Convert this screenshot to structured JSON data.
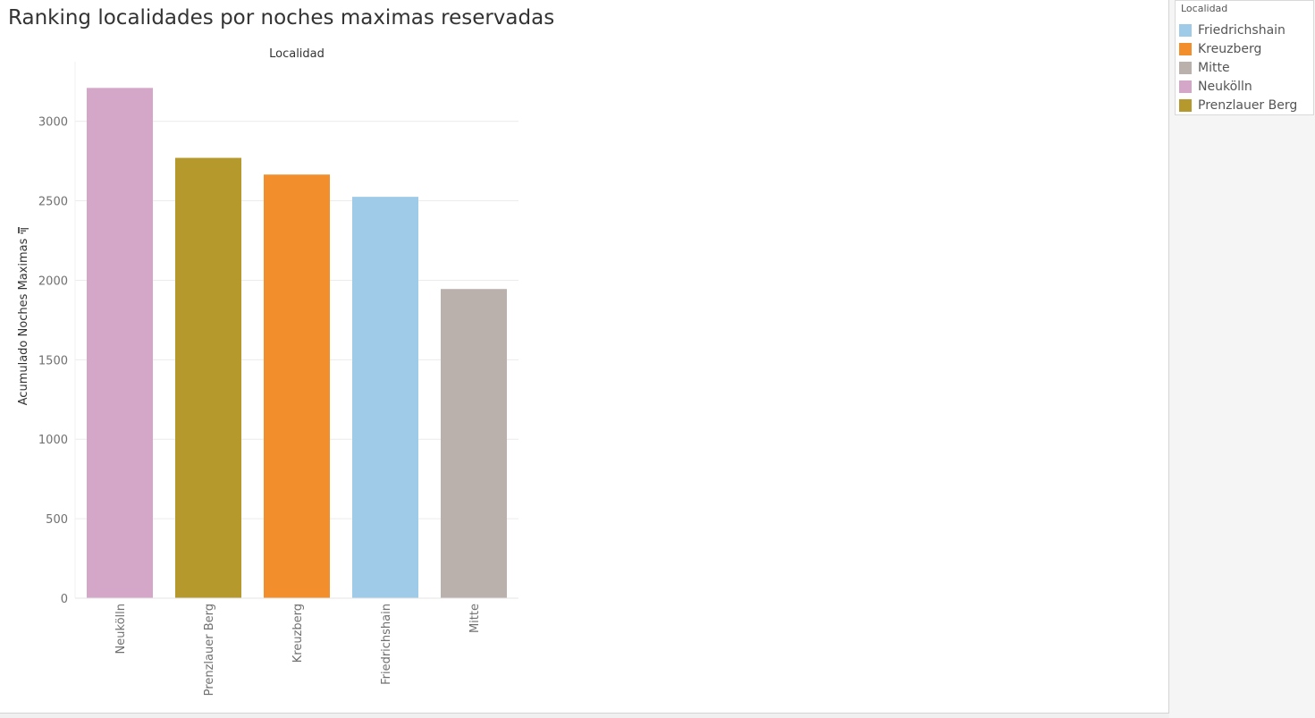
{
  "title": "Ranking localidades por noches maximas reservadas",
  "legend": {
    "title": "Localidad",
    "items": [
      {
        "label": "Friedrichshain",
        "color": "#a0cbe8"
      },
      {
        "label": "Kreuzberg",
        "color": "#f28e2b"
      },
      {
        "label": "Mitte",
        "color": "#bab0ac"
      },
      {
        "label": "Neukölln",
        "color": "#d4a6c8"
      },
      {
        "label": "Prenzlauer Berg",
        "color": "#b6992d"
      }
    ]
  },
  "chart_data": {
    "type": "bar",
    "column_header": "Localidad",
    "ylabel": "Acumulado Noches Maximas",
    "ylim": [
      0,
      3375
    ],
    "yticks": [
      0,
      500,
      1000,
      1500,
      2000,
      2500,
      3000
    ],
    "categories": [
      "Neukölln",
      "Prenzlauer Berg",
      "Kreuzberg",
      "Friedrichshain",
      "Mitte"
    ],
    "values": [
      3210,
      2770,
      2665,
      2525,
      1945
    ],
    "colors": [
      "#d4a6c8",
      "#b6992d",
      "#f28e2b",
      "#a0cbe8",
      "#bab0ac"
    ],
    "grid": true,
    "legend_position": "top-right",
    "sorted": "descending"
  }
}
